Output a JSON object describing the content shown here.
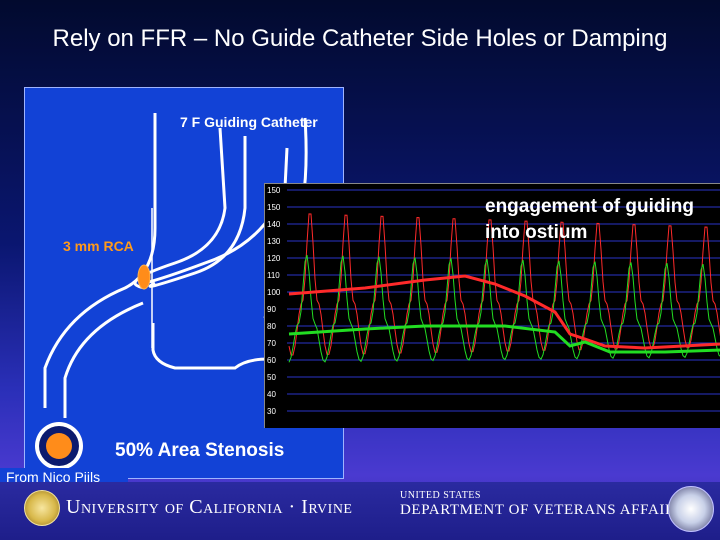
{
  "slide": {
    "title": "Rely on FFR – No Guide Catheter Side Holes or Damping"
  },
  "figure": {
    "catheter_label": "7 F Guiding Catheter",
    "rca_label": "3 mm RCA",
    "stenosis_label": "50% Area Stenosis",
    "source": "From Nico Pijls"
  },
  "tracing": {
    "annotation": "engagement of guiding into ostium",
    "y_ticks": [
      "150",
      "150",
      "140",
      "130",
      "120",
      "110",
      "100",
      "90",
      "80",
      "70",
      "60",
      "50",
      "40",
      "30"
    ],
    "colors": {
      "aortic": "#ff2a2a",
      "distal": "#22dd22",
      "gridline": "#2a34c8"
    }
  },
  "footer": {
    "university": "University of California · Irvine",
    "va_small": "UNITED STATES",
    "va_name": "DEPARTMENT OF VETERANS AFFAIRS"
  }
}
